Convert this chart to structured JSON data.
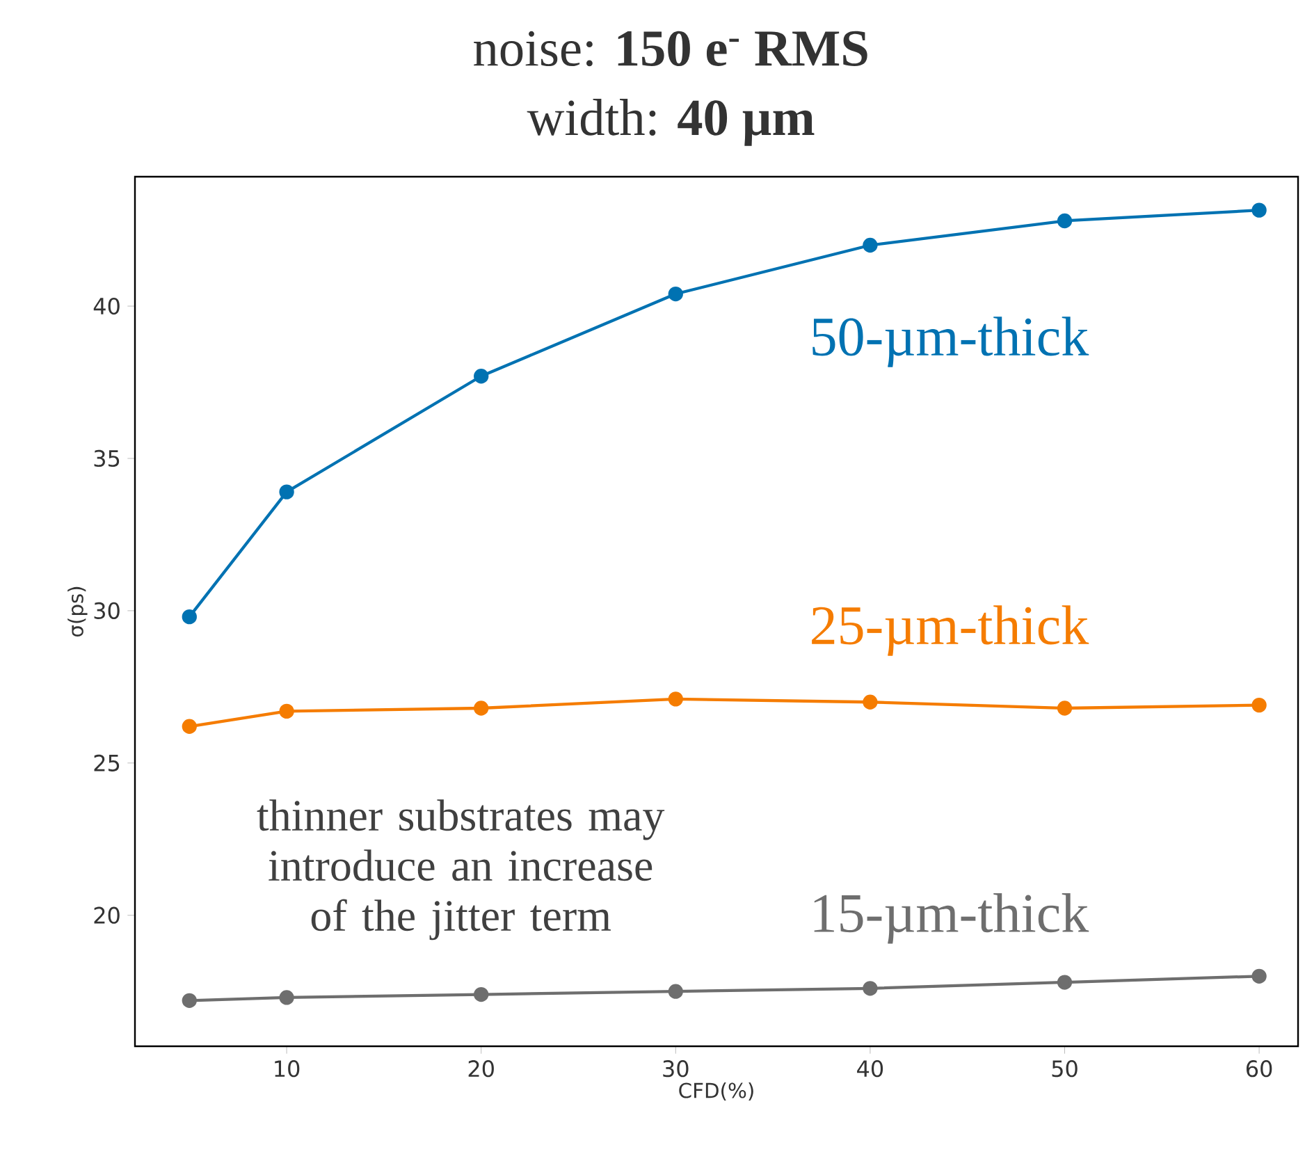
{
  "chart_data": {
    "type": "line",
    "title": "noise: **150 e$^{-}$ RMS**",
    "subtitle": "width: **40 µm**",
    "xlabel": "CFD(%)",
    "ylabel": "σ(ps)",
    "x": [
      5,
      10,
      20,
      30,
      40,
      50,
      60
    ],
    "series": [
      {
        "name": "50-µm-thick",
        "color": "#0072b2",
        "values": [
          29.8,
          33.9,
          37.7,
          40.4,
          42.0,
          42.8,
          43.15
        ]
      },
      {
        "name": "25-µm-thick",
        "color": "#f57c00",
        "values": [
          26.2,
          26.7,
          26.8,
          27.1,
          27.0,
          26.8,
          26.9
        ]
      },
      {
        "name": "15-µm-thick",
        "color": "#6e6e6e",
        "values": [
          17.2,
          17.3,
          17.4,
          17.5,
          17.6,
          17.8,
          18.0
        ]
      }
    ],
    "xlim": [
      2.2,
      62
    ],
    "ylim": [
      15.7,
      44.25
    ],
    "xticks": [
      10,
      20,
      30,
      40,
      50,
      60
    ],
    "yticks": [
      20,
      25,
      30,
      35,
      40
    ],
    "marker": "circle",
    "line_style": "solid",
    "grid": false,
    "annotations": [
      "thinner substrates may introduce an increase of the jitter term"
    ]
  }
}
